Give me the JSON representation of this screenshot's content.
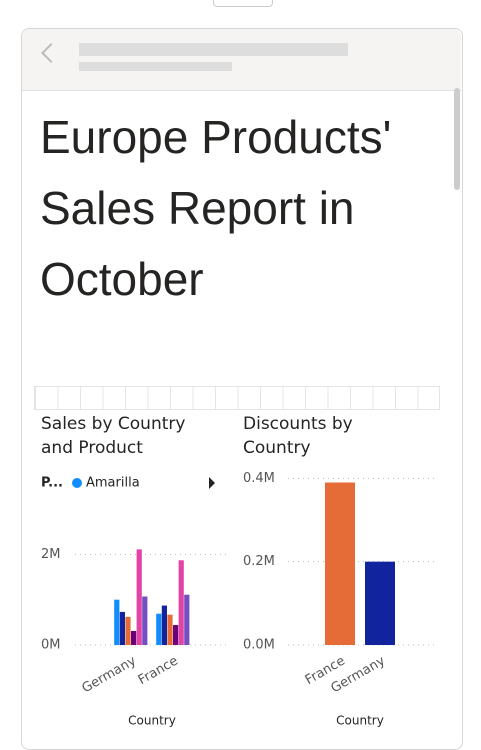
{
  "report_title": "Europe Products' Sales Report in October",
  "chart_data": [
    {
      "type": "clustered-bar",
      "title": "Sales by Country and Product",
      "legend_title": "P...",
      "x_label": "Country",
      "categories": [
        "Germany",
        "France"
      ],
      "series": [
        {
          "name": "Amarilla",
          "color": "#118DFF",
          "values": [
            1.0,
            0.69
          ]
        },
        {
          "color": "#12239E",
          "values": [
            0.73,
            0.87
          ]
        },
        {
          "color": "#E66C37",
          "values": [
            0.62,
            0.67
          ]
        },
        {
          "color": "#6B007B",
          "values": [
            0.31,
            0.44
          ]
        },
        {
          "color": "#E044A7",
          "values": [
            2.11,
            1.87
          ]
        },
        {
          "color": "#744EC2",
          "values": [
            1.07,
            1.11
          ]
        }
      ],
      "ylim": [
        0,
        3.2
      ],
      "yticks": [
        {
          "value": 0,
          "label": "0M"
        },
        {
          "value": 2,
          "label": "2M"
        }
      ],
      "grid": true
    },
    {
      "type": "bar",
      "title": "Discounts by Country",
      "x_label": "Country",
      "categories": [
        "France",
        "Germany"
      ],
      "values": [
        0.39,
        0.2
      ],
      "colors": [
        "#E66C37",
        "#12239E"
      ],
      "ylim": [
        0,
        0.42
      ],
      "yticks": [
        {
          "value": 0,
          "label": "0.0M"
        },
        {
          "value": 0.2,
          "label": "0.2M"
        },
        {
          "value": 0.4,
          "label": "0.4M"
        }
      ],
      "grid": true
    }
  ]
}
